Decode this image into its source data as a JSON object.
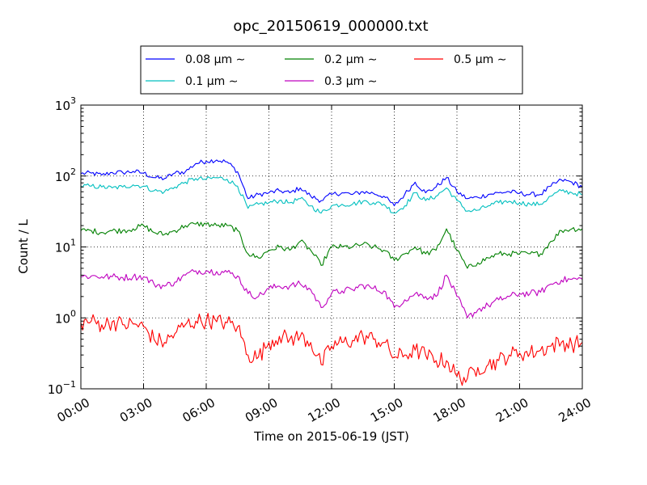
{
  "chart_data": {
    "type": "line",
    "title": "opc_20150619_000000.txt",
    "xlabel": "Time on 2015-06-19 (JST)",
    "ylabel": "Count / L",
    "y_scale": "log",
    "ylim": [
      0.1,
      1000
    ],
    "xlim": [
      "00:00",
      "24:00"
    ],
    "x_ticks": [
      "00:00",
      "03:00",
      "06:00",
      "09:00",
      "12:00",
      "15:00",
      "18:00",
      "21:00",
      "24:00"
    ],
    "y_ticks": [
      {
        "value": 0.1,
        "base": "10",
        "exp": "−1"
      },
      {
        "value": 1,
        "base": "10",
        "exp": "0"
      },
      {
        "value": 10,
        "base": "10",
        "exp": "1"
      },
      {
        "value": 100,
        "base": "10",
        "exp": "2"
      },
      {
        "value": 1000,
        "base": "10",
        "exp": "3"
      }
    ],
    "grid": true,
    "legend_position": "top-center, above plot",
    "x": [
      "00:00",
      "00:30",
      "01:00",
      "01:30",
      "02:00",
      "02:30",
      "03:00",
      "03:30",
      "04:00",
      "04:30",
      "05:00",
      "05:30",
      "06:00",
      "06:30",
      "07:00",
      "07:30",
      "08:00",
      "08:30",
      "09:00",
      "09:30",
      "10:00",
      "10:30",
      "11:00",
      "11:30",
      "12:00",
      "12:30",
      "13:00",
      "13:30",
      "14:00",
      "14:30",
      "15:00",
      "15:30",
      "16:00",
      "16:30",
      "17:00",
      "17:30",
      "18:00",
      "18:30",
      "19:00",
      "19:30",
      "20:00",
      "20:30",
      "21:00",
      "21:30",
      "22:00",
      "22:30",
      "23:00",
      "23:30",
      "24:00"
    ],
    "series": [
      {
        "name": "0.08 μm ∼",
        "color": "#0000ff",
        "values": [
          108,
          110,
          103,
          112,
          112,
          116,
          110,
          95,
          92,
          110,
          115,
          150,
          162,
          168,
          158,
          115,
          48,
          55,
          58,
          62,
          58,
          68,
          52,
          45,
          55,
          58,
          55,
          60,
          57,
          52,
          38,
          55,
          82,
          58,
          70,
          95,
          60,
          48,
          50,
          55,
          58,
          60,
          57,
          55,
          55,
          72,
          88,
          82,
          70
        ]
      },
      {
        "name": "0.1 μm ∼",
        "color": "#00bfbf",
        "values": [
          72,
          72,
          70,
          68,
          70,
          75,
          72,
          62,
          60,
          70,
          82,
          92,
          90,
          95,
          90,
          72,
          35,
          40,
          42,
          45,
          42,
          48,
          38,
          30,
          38,
          40,
          40,
          44,
          42,
          40,
          30,
          38,
          58,
          45,
          52,
          68,
          45,
          32,
          33,
          38,
          42,
          44,
          42,
          40,
          40,
          52,
          62,
          58,
          55
        ]
      },
      {
        "name": "0.2 μm ∼",
        "color": "#008000",
        "values": [
          17,
          17,
          16,
          17,
          17,
          18,
          20,
          16,
          15,
          17,
          20,
          21,
          21,
          20,
          20,
          17,
          8,
          7,
          9,
          10,
          9,
          12,
          9,
          5.5,
          10,
          10,
          10,
          11,
          10,
          9,
          6.5,
          8,
          10,
          8,
          9,
          18,
          9,
          5,
          6,
          7,
          8,
          8,
          8,
          8,
          8,
          12,
          17,
          18,
          18
        ]
      },
      {
        "name": "0.3 μm ∼",
        "color": "#bf00bf",
        "values": [
          3.8,
          3.9,
          3.8,
          3.8,
          3.7,
          3.8,
          3.8,
          3.0,
          2.8,
          3.2,
          4.0,
          4.6,
          4.6,
          4.5,
          4.4,
          3.9,
          2.2,
          2.0,
          2.6,
          2.8,
          2.8,
          3.0,
          2.5,
          1.4,
          2.2,
          2.4,
          2.5,
          2.9,
          2.6,
          2.4,
          1.4,
          1.8,
          2.2,
          2.0,
          2.0,
          4.0,
          2.0,
          1.0,
          1.3,
          1.5,
          1.8,
          2.0,
          2.2,
          2.2,
          2.3,
          3.0,
          3.4,
          3.5,
          3.5
        ]
      },
      {
        "name": "0.5 μm ∼",
        "color": "#ff0000",
        "values": [
          0.85,
          0.9,
          0.8,
          0.88,
          0.8,
          0.82,
          0.75,
          0.5,
          0.45,
          0.6,
          0.8,
          0.9,
          0.92,
          0.88,
          0.85,
          0.75,
          0.3,
          0.28,
          0.45,
          0.55,
          0.5,
          0.55,
          0.45,
          0.22,
          0.4,
          0.45,
          0.48,
          0.55,
          0.5,
          0.45,
          0.28,
          0.3,
          0.35,
          0.3,
          0.25,
          0.25,
          0.15,
          0.14,
          0.2,
          0.22,
          0.25,
          0.3,
          0.32,
          0.32,
          0.35,
          0.4,
          0.45,
          0.42,
          0.45
        ]
      }
    ]
  }
}
